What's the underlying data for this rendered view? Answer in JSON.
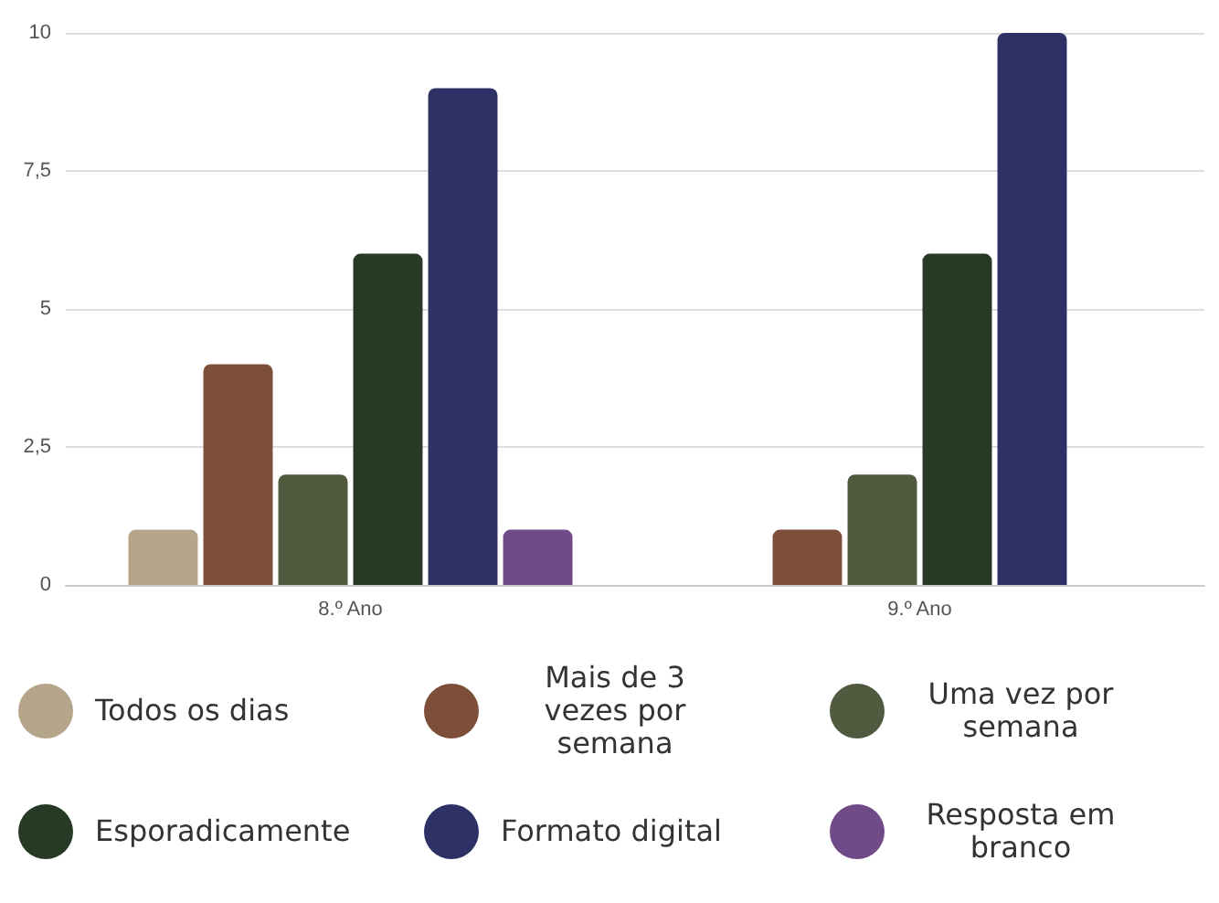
{
  "chart_data": {
    "type": "bar",
    "categories": [
      "8.º Ano",
      "9.º Ano"
    ],
    "series": [
      {
        "name": "Todos os dias",
        "color": "#b5a58a",
        "values": [
          1,
          null
        ]
      },
      {
        "name": "Mais de 3 vezes por semana",
        "color": "#7d4e3a",
        "values": [
          4,
          1
        ]
      },
      {
        "name": "Uma vez por semana",
        "color": "#4f5a3f",
        "values": [
          2,
          2
        ]
      },
      {
        "name": "Esporadicamente",
        "color": "#263a25",
        "values": [
          6,
          6
        ]
      },
      {
        "name": "Formato digital",
        "color": "#2e3165",
        "values": [
          9,
          10
        ]
      },
      {
        "name": "Resposta em branco",
        "color": "#714b87",
        "values": [
          1,
          null
        ]
      }
    ],
    "ylim": [
      0,
      10
    ],
    "yticks": [
      0,
      {
        "value": 2.5,
        "label": "2,5"
      },
      5,
      {
        "value": 7.5,
        "label": "7,5"
      },
      10
    ],
    "grid": "y",
    "legend": "bottom"
  }
}
